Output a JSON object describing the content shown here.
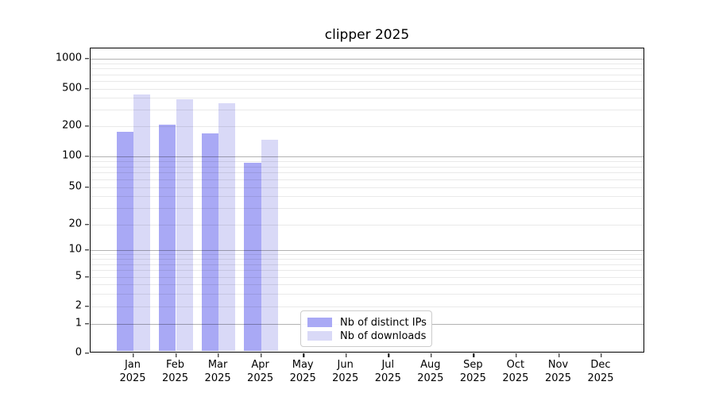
{
  "chart": {
    "title": "clipper 2025"
  },
  "legend": {
    "items": [
      {
        "label": "Nb of distinct IPs",
        "color": "#a9a9f5"
      },
      {
        "label": "Nb of downloads",
        "color": "#d9d9f7"
      }
    ]
  },
  "chart_data": {
    "type": "bar",
    "title": "clipper 2025",
    "yscale": "symlog",
    "ylim": [
      0,
      1270
    ],
    "grid": "horizontal",
    "legend_position": "inside-bottom-center",
    "categories": [
      "Jan 2025",
      "Feb 2025",
      "Mar 2025",
      "Apr 2025",
      "May 2025",
      "Jun 2025",
      "Jul 2025",
      "Aug 2025",
      "Sep 2025",
      "Oct 2025",
      "Nov 2025",
      "Dec 2025"
    ],
    "y_ticks": [
      0,
      1,
      2,
      5,
      10,
      20,
      50,
      100,
      200,
      500,
      1000
    ],
    "series": [
      {
        "name": "Nb of distinct IPs",
        "color": "#a9a9f5",
        "values": [
          175,
          210,
          170,
          87,
          null,
          null,
          null,
          null,
          null,
          null,
          null,
          null
        ]
      },
      {
        "name": "Nb of downloads",
        "color": "#d9d9f7",
        "values": [
          435,
          390,
          350,
          147,
          null,
          null,
          null,
          null,
          null,
          null,
          null,
          null
        ]
      }
    ]
  }
}
